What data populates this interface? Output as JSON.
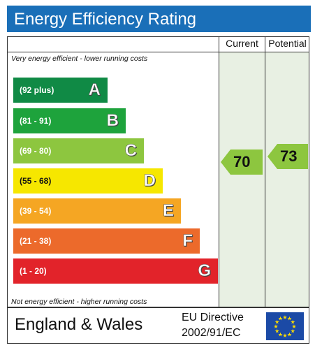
{
  "title": "Energy Efficiency Rating",
  "columns": {
    "current": "Current",
    "potential": "Potential"
  },
  "top_note": "Very energy efficient - lower running costs",
  "bottom_note": "Not energy efficient - higher running costs",
  "bands": [
    {
      "range": "(92 plus)",
      "letter": "A",
      "color": "#108a45"
    },
    {
      "range": "(81 - 91)",
      "letter": "B",
      "color": "#1ea33c"
    },
    {
      "range": "(69 - 80)",
      "letter": "C",
      "color": "#8dc63f"
    },
    {
      "range": "(55 - 68)",
      "letter": "D",
      "color": "#f6e700"
    },
    {
      "range": "(39 - 54)",
      "letter": "E",
      "color": "#f5a623"
    },
    {
      "range": "(21 - 38)",
      "letter": "F",
      "color": "#ec6a2b"
    },
    {
      "range": "(1 - 20)",
      "letter": "G",
      "color": "#e2232a"
    }
  ],
  "current_rating": {
    "value": "70",
    "band": "C",
    "color": "#8dc63f"
  },
  "potential_rating": {
    "value": "73",
    "band": "C",
    "color": "#8dc63f"
  },
  "footer": {
    "region": "England & Wales",
    "directive_line1": "EU Directive",
    "directive_line2": "2002/91/EC"
  },
  "colors": {
    "title_bar": "#1a6fb8",
    "column_bg": "#e8f0e3",
    "eu_flag_blue": "#1b4aa6",
    "eu_star": "#ffdd00"
  }
}
